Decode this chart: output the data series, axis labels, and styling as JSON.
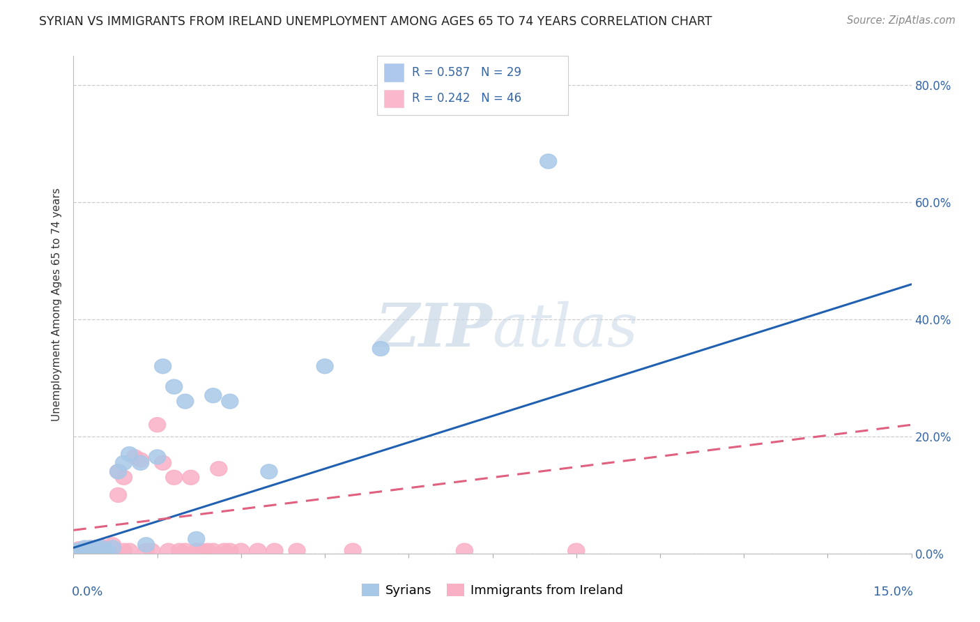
{
  "title": "SYRIAN VS IMMIGRANTS FROM IRELAND UNEMPLOYMENT AMONG AGES 65 TO 74 YEARS CORRELATION CHART",
  "source": "Source: ZipAtlas.com",
  "ylabel": "Unemployment Among Ages 65 to 74 years",
  "legend_R_N": [
    {
      "R": "0.587",
      "N": "29",
      "color": "#adc8ec"
    },
    {
      "R": "0.242",
      "N": "46",
      "color": "#f9b8cb"
    }
  ],
  "syrian_scatter_x": [
    0.0005,
    0.001,
    0.0015,
    0.002,
    0.002,
    0.003,
    0.003,
    0.004,
    0.004,
    0.005,
    0.005,
    0.006,
    0.007,
    0.008,
    0.009,
    0.01,
    0.012,
    0.013,
    0.015,
    0.016,
    0.018,
    0.02,
    0.022,
    0.025,
    0.028,
    0.035,
    0.045,
    0.055,
    0.085
  ],
  "syrian_scatter_y": [
    0.005,
    0.005,
    0.005,
    0.005,
    0.01,
    0.005,
    0.01,
    0.005,
    0.01,
    0.005,
    0.01,
    0.005,
    0.01,
    0.14,
    0.155,
    0.17,
    0.155,
    0.015,
    0.165,
    0.32,
    0.285,
    0.26,
    0.025,
    0.27,
    0.26,
    0.14,
    0.32,
    0.35,
    0.67
  ],
  "ireland_scatter_x": [
    0.0005,
    0.001,
    0.001,
    0.0015,
    0.002,
    0.002,
    0.003,
    0.003,
    0.004,
    0.004,
    0.005,
    0.005,
    0.006,
    0.006,
    0.007,
    0.007,
    0.008,
    0.008,
    0.009,
    0.009,
    0.01,
    0.011,
    0.012,
    0.013,
    0.014,
    0.015,
    0.016,
    0.017,
    0.018,
    0.019,
    0.02,
    0.021,
    0.022,
    0.023,
    0.024,
    0.025,
    0.026,
    0.027,
    0.028,
    0.03,
    0.033,
    0.036,
    0.04,
    0.05,
    0.07,
    0.09
  ],
  "ireland_scatter_y": [
    0.005,
    0.005,
    0.008,
    0.005,
    0.005,
    0.008,
    0.005,
    0.01,
    0.005,
    0.01,
    0.005,
    0.012,
    0.005,
    0.01,
    0.005,
    0.015,
    0.1,
    0.14,
    0.005,
    0.13,
    0.005,
    0.165,
    0.16,
    0.005,
    0.005,
    0.22,
    0.155,
    0.005,
    0.13,
    0.005,
    0.005,
    0.13,
    0.005,
    0.005,
    0.005,
    0.005,
    0.145,
    0.005,
    0.005,
    0.005,
    0.005,
    0.005,
    0.005,
    0.005,
    0.005,
    0.005
  ],
  "syrian_color": "#a8c8e8",
  "ireland_color": "#f9b0c5",
  "syrian_line_color": "#2060b0",
  "ireland_line_color": "#e06080",
  "syrian_line_x": [
    0.0,
    0.15
  ],
  "syrian_line_y": [
    0.01,
    0.46
  ],
  "ireland_line_x": [
    0.0,
    0.15
  ],
  "ireland_line_y": [
    0.04,
    0.22
  ],
  "background_color": "#ffffff",
  "grid_color": "#cccccc",
  "x_min": 0.0,
  "x_max": 0.15,
  "y_min": 0.0,
  "y_max": 0.85,
  "y_ticks": [
    0.0,
    0.2,
    0.4,
    0.6,
    0.8
  ],
  "y_tick_labels": [
    "0.0%",
    "20.0%",
    "40.0%",
    "60.0%",
    "80.0%"
  ]
}
